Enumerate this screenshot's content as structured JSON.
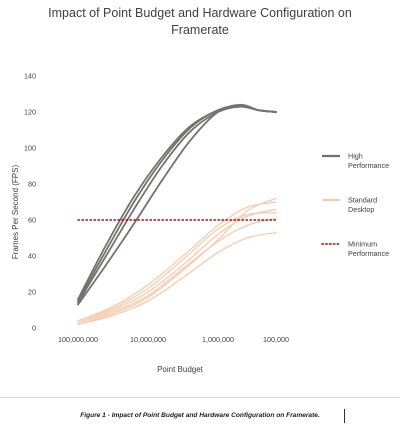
{
  "chart_data": {
    "type": "line",
    "title": "Impact of Point Budget and Hardware Configuration on Framerate",
    "xlabel": "Point Budget",
    "ylabel": "Frames Per Second (FPS)",
    "ylim": [
      0,
      140
    ],
    "yticks": [
      0,
      20,
      40,
      60,
      80,
      100,
      120,
      140
    ],
    "categories": [
      "100,000,000",
      "10,000,000",
      "1,000,000",
      "100,000"
    ],
    "grid": false,
    "legend_position": "right",
    "series": [
      {
        "name": "High Performance",
        "color": "#767171",
        "style": "solid",
        "lines": [
          [
            [
              1,
              13
            ],
            [
              1.4,
              35
            ],
            [
              1.8,
              58
            ],
            [
              2.2,
              82
            ],
            [
              2.6,
              104
            ],
            [
              3.0,
              120
            ],
            [
              3.4,
              123
            ],
            [
              3.7,
              121
            ],
            [
              4,
              120
            ]
          ],
          [
            [
              1,
              14
            ],
            [
              1.4,
              40
            ],
            [
              1.8,
              66
            ],
            [
              2.2,
              90
            ],
            [
              2.6,
              109
            ],
            [
              3.0,
              120
            ],
            [
              3.4,
              123
            ],
            [
              3.7,
              121
            ],
            [
              4,
              120
            ]
          ],
          [
            [
              1,
              15
            ],
            [
              1.4,
              43
            ],
            [
              1.8,
              70
            ],
            [
              2.2,
              93
            ],
            [
              2.6,
              111
            ],
            [
              3.0,
              121
            ],
            [
              3.4,
              123
            ],
            [
              3.7,
              121
            ],
            [
              4,
              120
            ]
          ],
          [
            [
              1,
              16
            ],
            [
              1.4,
              46
            ],
            [
              1.8,
              73
            ],
            [
              2.2,
              95
            ],
            [
              2.6,
              112
            ],
            [
              3.0,
              121
            ],
            [
              3.4,
              124
            ],
            [
              3.7,
              121
            ],
            [
              4,
              120
            ]
          ]
        ]
      },
      {
        "name": "Standard Desktop",
        "color": "#f8cbad",
        "style": "solid",
        "lines": [
          [
            [
              1,
              2
            ],
            [
              1.5,
              8
            ],
            [
              2.0,
              17
            ],
            [
              2.5,
              32
            ],
            [
              3.0,
              49
            ],
            [
              3.5,
              65
            ],
            [
              4,
              72
            ]
          ],
          [
            [
              1,
              3
            ],
            [
              1.5,
              10
            ],
            [
              2.0,
              20
            ],
            [
              2.5,
              35
            ],
            [
              3.0,
              52
            ],
            [
              3.5,
              62
            ],
            [
              4,
              66
            ]
          ],
          [
            [
              1,
              4
            ],
            [
              1.5,
              11
            ],
            [
              2.0,
              22
            ],
            [
              2.5,
              38
            ],
            [
              3.0,
              55
            ],
            [
              3.5,
              63
            ],
            [
              4,
              64
            ]
          ],
          [
            [
              1,
              3
            ],
            [
              1.5,
              9
            ],
            [
              2.0,
              18
            ],
            [
              2.5,
              33
            ],
            [
              3.0,
              48
            ],
            [
              3.5,
              57
            ],
            [
              4,
              61
            ]
          ],
          [
            [
              1,
              2
            ],
            [
              1.5,
              7
            ],
            [
              2.0,
              15
            ],
            [
              2.5,
              28
            ],
            [
              3.0,
              42
            ],
            [
              3.5,
              50
            ],
            [
              4,
              53
            ]
          ],
          [
            [
              1,
              4
            ],
            [
              1.5,
              12
            ],
            [
              2.0,
              24
            ],
            [
              2.5,
              40
            ],
            [
              3.0,
              57
            ],
            [
              3.5,
              67
            ],
            [
              4,
              70
            ]
          ]
        ]
      },
      {
        "name": "Minimum Performance",
        "color": "#c00000",
        "style": "dotted",
        "lines": [
          [
            [
              1,
              60
            ],
            [
              4,
              60
            ]
          ]
        ]
      }
    ]
  },
  "caption": {
    "text": "Figure 1 - Impact of Point Budget and Hardware Configuration on Framerate."
  },
  "legend": {
    "high": [
      "High",
      "Performance"
    ],
    "standard": [
      "Standard",
      "Desktop"
    ],
    "minimum": [
      "Minimum",
      "Performance"
    ]
  },
  "title_lines": [
    "Impact of Point Budget and Hardware Configuration on",
    "Framerate"
  ]
}
